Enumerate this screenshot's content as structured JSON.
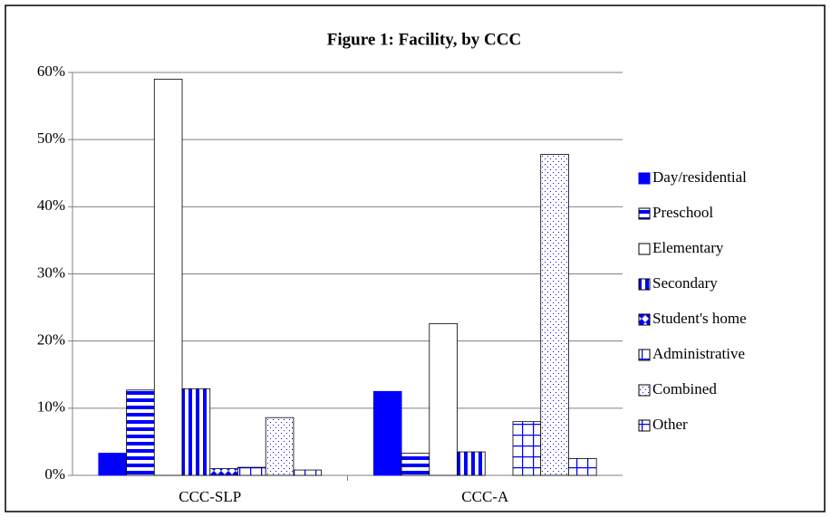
{
  "chart_data": {
    "type": "bar",
    "title": "Figure 1: Facility, by CCC",
    "categories": [
      "CCC-SLP",
      "CCC-A"
    ],
    "series": [
      {
        "name": "Day/residential",
        "color": "#0000ff",
        "pattern": "solid",
        "values": [
          3.3,
          12.5
        ]
      },
      {
        "name": "Preschool",
        "color": "#0000ff",
        "pattern": "hstripe",
        "values": [
          12.7,
          3.3
        ]
      },
      {
        "name": "Elementary",
        "color": "#0000ff",
        "pattern": "none",
        "values": [
          59.0,
          22.6
        ]
      },
      {
        "name": "Secondary",
        "color": "#0000ff",
        "pattern": "vstripe",
        "values": [
          12.9,
          3.5
        ]
      },
      {
        "name": "Student's home",
        "color": "#0000ff",
        "pattern": "diamond",
        "values": [
          1.0,
          0
        ]
      },
      {
        "name": "Administrative",
        "color": "#0000ff",
        "pattern": "grid",
        "values": [
          1.2,
          8.0
        ]
      },
      {
        "name": "Combined",
        "color": "#0000ff",
        "pattern": "dots",
        "values": [
          8.6,
          47.8
        ]
      },
      {
        "name": "Other",
        "color": "#0000ff",
        "pattern": "grid",
        "values": [
          0.8,
          2.5
        ]
      }
    ],
    "ylim": [
      0,
      60
    ],
    "yticks": [
      {
        "value": 0,
        "label": "0%"
      },
      {
        "value": 10,
        "label": "10%"
      },
      {
        "value": 20,
        "label": "20%"
      },
      {
        "value": 30,
        "label": "30%"
      },
      {
        "value": 40,
        "label": "40%"
      },
      {
        "value": 50,
        "label": "50%"
      },
      {
        "value": 60,
        "label": "60%"
      }
    ],
    "grid": true,
    "legend": "right"
  }
}
